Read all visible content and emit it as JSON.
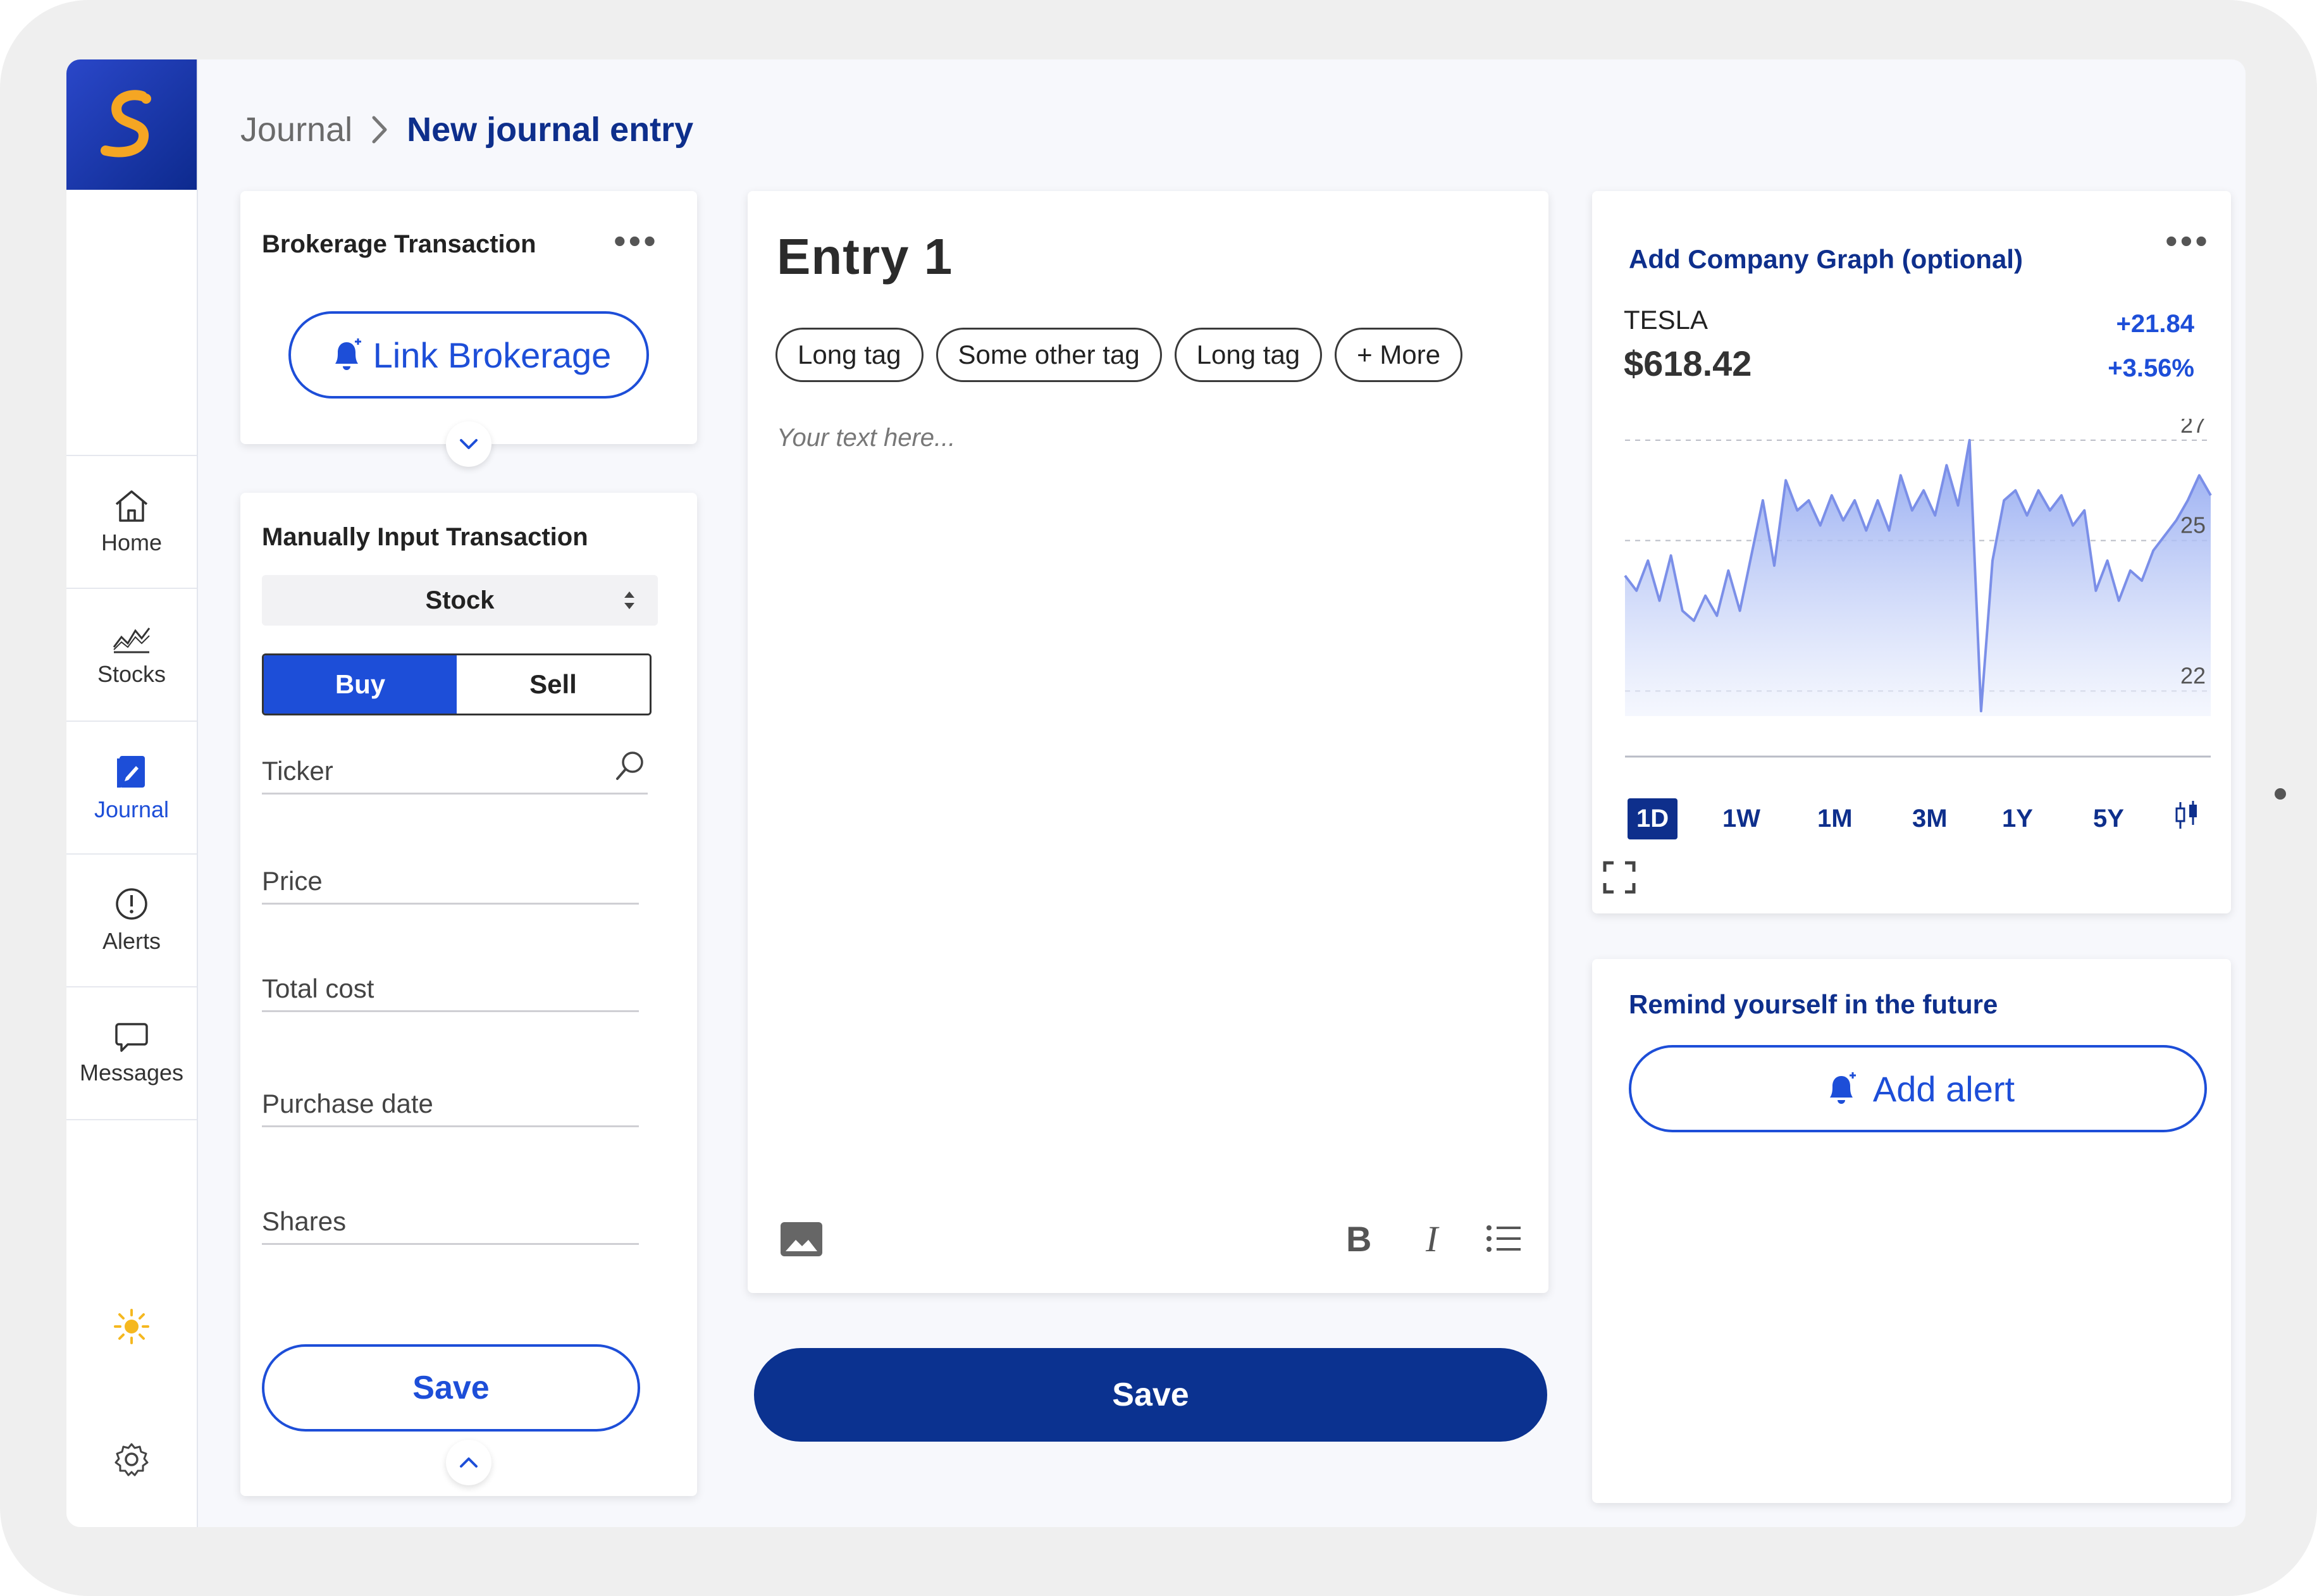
{
  "sidebar": {
    "items": [
      {
        "label": "Home",
        "icon": "home-icon"
      },
      {
        "label": "Stocks",
        "icon": "stocks-chart-icon"
      },
      {
        "label": "Journal",
        "icon": "journal-icon",
        "active": true
      },
      {
        "label": "Alerts",
        "icon": "alert-circle-icon"
      },
      {
        "label": "Messages",
        "icon": "chat-bubble-icon"
      }
    ],
    "bottom_icons": [
      "sun-icon",
      "gear-icon"
    ]
  },
  "breadcrumb": {
    "root": "Journal",
    "current": "New journal entry"
  },
  "brokerage": {
    "title": "Brokerage Transaction",
    "link_label": "Link Brokerage"
  },
  "manual": {
    "title": "Manually Input Transaction",
    "asset_type": "Stock",
    "buy_label": "Buy",
    "sell_label": "Sell",
    "fields": {
      "ticker": "Ticker",
      "price": "Price",
      "total_cost": "Total cost",
      "purchase_date": "Purchase date",
      "shares": "Shares"
    },
    "save_label": "Save"
  },
  "entry": {
    "title": "Entry 1",
    "tags": [
      "Long tag",
      "Some other tag",
      "Long tag",
      "+ More"
    ],
    "placeholder": "Your text here...",
    "save_label": "Save"
  },
  "graph": {
    "title": "Add Company Graph (optional)",
    "ticker": "TESLA",
    "price": "$618.42",
    "change_abs": "+21.84",
    "change_pct": "+3.56%",
    "ranges": [
      "1D",
      "1W",
      "1M",
      "3M",
      "1Y",
      "5Y"
    ],
    "active_range": "1D",
    "colors": {
      "line": "#7b8fe8",
      "fill_top": "#8aa2f0",
      "fill_bottom": "#eef2fd"
    }
  },
  "chart_data": {
    "type": "area",
    "x_label": "",
    "y_label": "",
    "y_ticks": [
      22,
      25,
      27
    ],
    "ylim": [
      21.5,
      27.2
    ],
    "grid": true,
    "values": [
      24.3,
      24.0,
      24.6,
      23.8,
      24.7,
      23.6,
      23.4,
      23.9,
      23.5,
      24.4,
      23.6,
      24.7,
      25.8,
      24.5,
      26.2,
      25.6,
      25.8,
      25.3,
      25.9,
      25.4,
      25.8,
      25.2,
      25.8,
      25.2,
      26.3,
      25.6,
      26.0,
      25.5,
      26.5,
      25.7,
      27.0,
      21.6,
      24.6,
      25.8,
      26.0,
      25.5,
      26.0,
      25.6,
      25.9,
      25.3,
      25.6,
      24.0,
      24.6,
      23.8,
      24.4,
      24.2,
      24.8,
      25.1,
      25.4,
      25.8,
      26.3,
      25.9
    ]
  },
  "remind": {
    "title": "Remind yourself in the future",
    "button_label": "Add alert"
  }
}
